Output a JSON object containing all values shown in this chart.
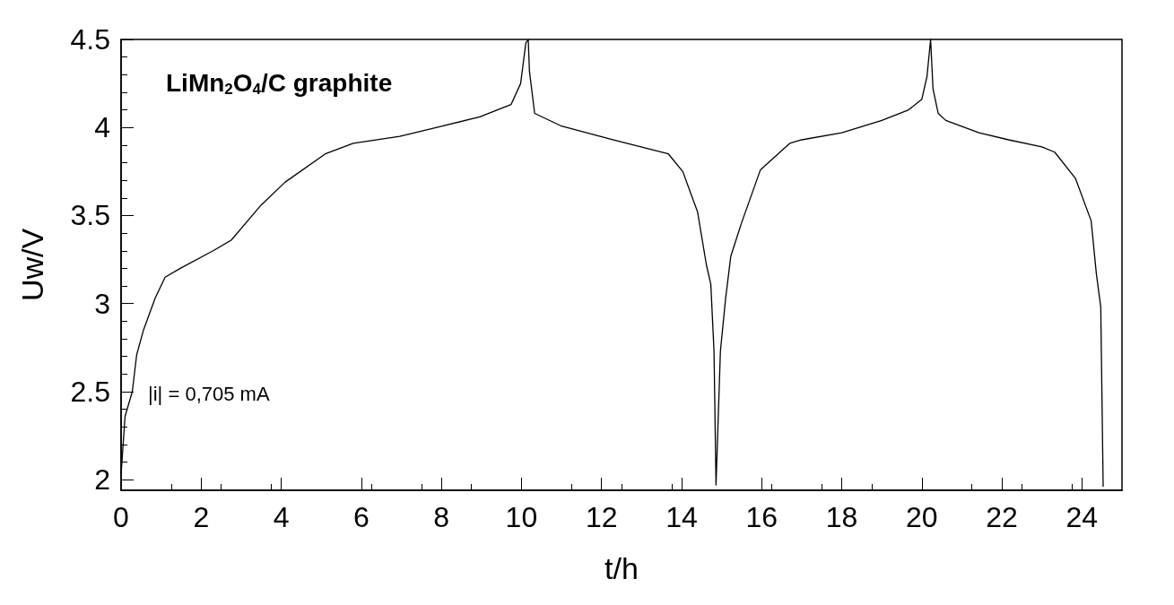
{
  "chart_data": {
    "type": "line",
    "xlabel": "t/h",
    "ylabel": "Uw/V",
    "annotations": [
      "LiMn$_{2}$O$_{4}$/C graphite",
      "|i| = 0,705 mA"
    ],
    "xlim": [
      0,
      25
    ],
    "xticks": [
      0,
      2,
      4,
      6,
      8,
      10,
      12,
      14,
      16,
      18,
      20,
      22,
      24
    ],
    "ylim": [
      1.94,
      4.5
    ],
    "yticks": [
      2,
      2.5,
      3,
      3.5,
      4,
      4.5
    ],
    "grid": false,
    "marker": "none",
    "line_style": "solid",
    "series": [
      {
        "color": "#000000",
        "x": [
          0,
          0.1,
          0.28,
          0.39,
          0.56,
          0.85,
          1.1,
          1.48,
          2.3,
          2.75,
          3.5,
          4.1,
          5.1,
          5.8,
          6.96,
          8.05,
          8.96,
          9.74,
          9.98,
          10.11,
          10.17,
          10.2,
          10.33,
          10.98,
          12.28,
          13.67,
          14.03,
          14.4,
          14.62,
          14.73,
          14.81,
          14.86,
          14.97,
          15.1,
          15.23,
          15.5,
          15.97,
          16.7,
          17.0,
          18.0,
          19.0,
          19.67,
          20.0,
          20.13,
          20.22,
          20.28,
          20.41,
          20.6,
          21.43,
          22.17,
          23.0,
          23.32,
          23.84,
          24.23,
          24.36,
          24.47,
          24.53
        ],
        "values": [
          2.03,
          2.36,
          2.5,
          2.71,
          2.85,
          3.03,
          3.15,
          3.2,
          3.3,
          3.36,
          3.56,
          3.69,
          3.85,
          3.91,
          3.95,
          4.01,
          4.06,
          4.13,
          4.25,
          4.48,
          4.5,
          4.32,
          4.08,
          4.01,
          3.93,
          3.85,
          3.75,
          3.52,
          3.22,
          3.11,
          2.73,
          1.97,
          2.73,
          3.03,
          3.27,
          3.46,
          3.76,
          3.91,
          3.93,
          3.97,
          4.04,
          4.1,
          4.16,
          4.29,
          4.5,
          4.22,
          4.08,
          4.04,
          3.97,
          3.93,
          3.89,
          3.86,
          3.71,
          3.47,
          3.17,
          2.98,
          1.96
        ]
      }
    ]
  }
}
